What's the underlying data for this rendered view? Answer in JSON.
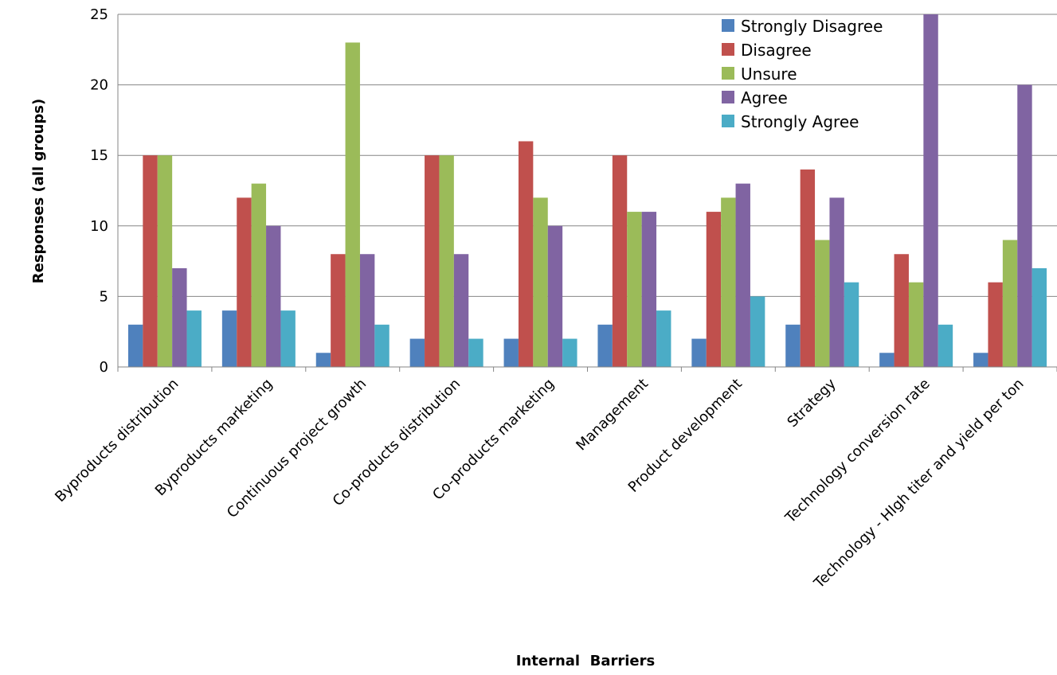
{
  "chart_data": {
    "type": "bar",
    "title": "",
    "xlabel": "Internal  Barriers",
    "ylabel": "Responses (all groups)",
    "ylim": [
      0,
      25
    ],
    "yticks": [
      0,
      5,
      10,
      15,
      20,
      25
    ],
    "grid": "horizontal",
    "legend_position": "top-right",
    "categories": [
      "Byproducts distribution",
      "Byproducts marketing",
      "Continuous project growth",
      "Co-products distribution",
      "Co-products marketing",
      "Management",
      "Product development",
      "Strategy",
      "Technology conversion rate",
      "Technology - HIgh titer and yield per ton"
    ],
    "series": [
      {
        "name": "Strongly Disagree",
        "color": "#4f81bd",
        "values": [
          3,
          4,
          1,
          2,
          2,
          3,
          2,
          3,
          1,
          1
        ]
      },
      {
        "name": "Disagree",
        "color": "#c0504d",
        "values": [
          15,
          12,
          8,
          15,
          16,
          15,
          11,
          14,
          8,
          6
        ]
      },
      {
        "name": "Unsure",
        "color": "#9bbb59",
        "values": [
          15,
          13,
          23,
          15,
          12,
          11,
          12,
          9,
          6,
          9
        ]
      },
      {
        "name": "Agree",
        "color": "#8064a2",
        "values": [
          7,
          10,
          8,
          8,
          10,
          11,
          13,
          12,
          25,
          20
        ]
      },
      {
        "name": "Strongly Agree",
        "color": "#4bacc6",
        "values": [
          4,
          4,
          3,
          2,
          2,
          4,
          5,
          6,
          3,
          7
        ]
      }
    ]
  }
}
